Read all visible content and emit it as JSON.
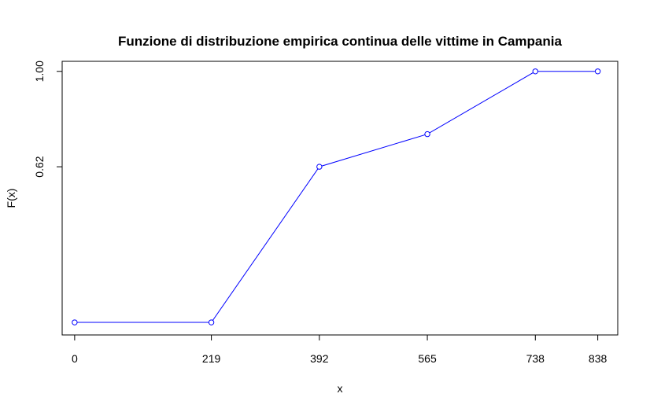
{
  "chart_data": {
    "type": "line",
    "title": "Funzione di distribuzione empirica continua delle vittime in  Campania",
    "xlabel": "x",
    "ylabel": "F(x)",
    "x": [
      0,
      219,
      392,
      565,
      738,
      838
    ],
    "y": [
      0.0,
      0.0,
      0.62,
      0.75,
      1.0,
      1.0
    ],
    "xticks": [
      0,
      219,
      392,
      565,
      738,
      838
    ],
    "yticks": [
      0.62,
      1.0
    ],
    "ytick_labels": [
      "0.62",
      "1.00"
    ],
    "xlim": [
      -20,
      870
    ],
    "ylim": [
      -0.05,
      1.04
    ],
    "grid": false,
    "series": [
      {
        "color": "#0000ff",
        "marker": "open-circle"
      }
    ]
  }
}
